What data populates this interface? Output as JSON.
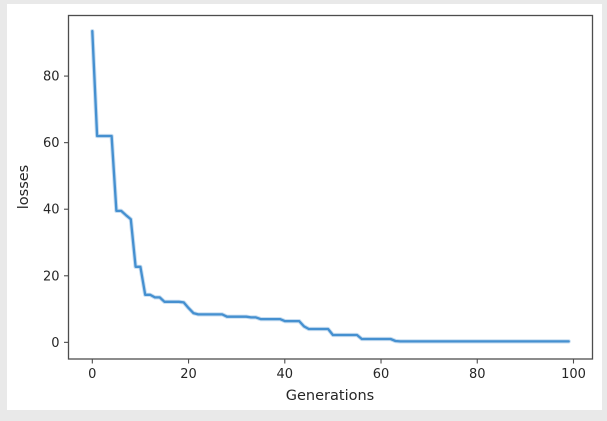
{
  "page": {
    "background_color": "#e9e9e9",
    "figure_background_color": "#ffffff"
  },
  "chart_data": {
    "type": "line",
    "title": "",
    "xlabel": "Generations",
    "ylabel": "losses",
    "grid": false,
    "legend": "none",
    "axis_color": "#4d4d4d",
    "text_color": "#262626",
    "xlim": [
      -4.95,
      103.95
    ],
    "ylim": [
      -5.0,
      98.2
    ],
    "x_axis": {
      "label": "Generations",
      "ticks": [
        0,
        20,
        40,
        60,
        80,
        100
      ]
    },
    "y_axis": {
      "label": "losses",
      "ticks": [
        0,
        20,
        40,
        60,
        80
      ]
    },
    "x_start": 0,
    "x_step": 1,
    "series": [
      {
        "name": "losses",
        "color": "#4590d0",
        "values": [
          93.5,
          62,
          62,
          62,
          62,
          39.5,
          39.5,
          38.2,
          37,
          22.7,
          22.7,
          14.3,
          14.3,
          13.5,
          13.5,
          12.2,
          12.2,
          12.2,
          12.2,
          12.0,
          10.3,
          8.8,
          8.4,
          8.4,
          8.4,
          8.4,
          8.4,
          8.4,
          7.7,
          7.7,
          7.7,
          7.7,
          7.7,
          7.5,
          7.5,
          7.0,
          7.0,
          7.0,
          7.0,
          7.0,
          6.4,
          6.4,
          6.4,
          6.4,
          4.8,
          4.0,
          4.0,
          4.0,
          4.0,
          4.0,
          2.2,
          2.2,
          2.2,
          2.2,
          2.2,
          2.2,
          1.0,
          1.0,
          1.0,
          1.0,
          1.0,
          1.0,
          1.0,
          0.4,
          0.3,
          0.3,
          0.3,
          0.3,
          0.3,
          0.3,
          0.3,
          0.3,
          0.3,
          0.3,
          0.3,
          0.3,
          0.3,
          0.3,
          0.3,
          0.3,
          0.3,
          0.3,
          0.3,
          0.3,
          0.3,
          0.3,
          0.3,
          0.3,
          0.3,
          0.3,
          0.3,
          0.3,
          0.3,
          0.3,
          0.3,
          0.3,
          0.3,
          0.3,
          0.3,
          0.3
        ]
      }
    ]
  }
}
